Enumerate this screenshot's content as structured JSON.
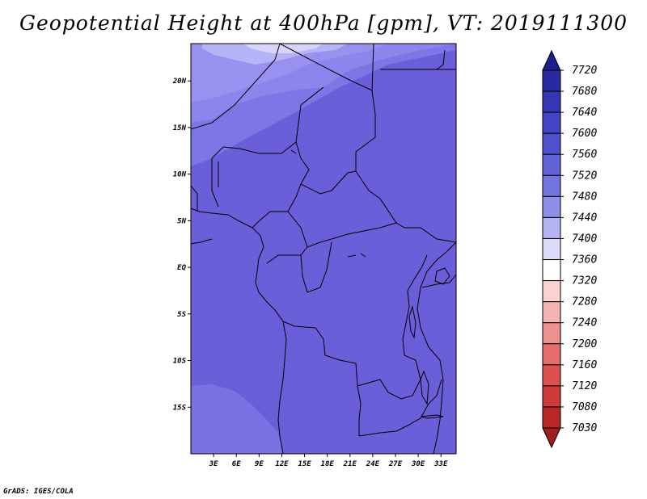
{
  "title": "Geopotential Height at 400hPa [gpm], VT: 2019111300",
  "credit": "GrADS: IGES/COLA",
  "map": {
    "variable": "Geopotential Height",
    "level": "400hPa",
    "units": "gpm",
    "valid_time": "2019111300",
    "lon_range": [
      0,
      35
    ],
    "lat_range": [
      -20,
      24
    ],
    "lon_ticks": [
      "3E",
      "6E",
      "9E",
      "12E",
      "15E",
      "18E",
      "21E",
      "24E",
      "27E",
      "30E",
      "33E"
    ],
    "lat_ticks": [
      "20N",
      "15N",
      "10N",
      "5N",
      "EQ",
      "5S",
      "10S",
      "15S"
    ]
  },
  "colorbar": {
    "levels": [
      "7720",
      "7680",
      "7640",
      "7600",
      "7560",
      "7520",
      "7480",
      "7440",
      "7400",
      "7360",
      "7320",
      "7280",
      "7240",
      "7200",
      "7160",
      "7120",
      "7080",
      "7030"
    ],
    "colors": [
      "#1e1e8c",
      "#2a2aa0",
      "#3636b4",
      "#4444c4",
      "#5050cc",
      "#6262d6",
      "#7474de",
      "#8e8ee8",
      "#b4b4f0",
      "#dcdcf8",
      "#ffffff",
      "#fad2d2",
      "#f4b2b2",
      "#ec9090",
      "#e46e6e",
      "#dc5050",
      "#cc3a3a",
      "#b82828",
      "#a01e1e"
    ]
  },
  "fill_colors": {
    "base": "#6a5fd8",
    "band1": "#7d76e6",
    "band2": "#9891f0",
    "band3": "#b7b3f7",
    "band4": "#d6d4fb"
  }
}
